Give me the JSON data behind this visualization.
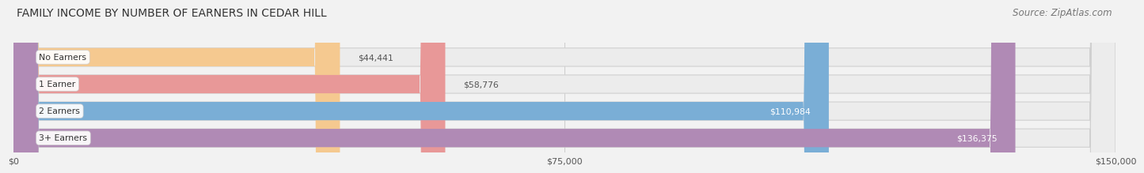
{
  "title": "FAMILY INCOME BY NUMBER OF EARNERS IN CEDAR HILL",
  "source": "Source: ZipAtlas.com",
  "categories": [
    "No Earners",
    "1 Earner",
    "2 Earners",
    "3+ Earners"
  ],
  "values": [
    44441,
    58776,
    110984,
    136375
  ],
  "bar_colors": [
    "#f5c990",
    "#e89898",
    "#7aaed6",
    "#b08ab5"
  ],
  "value_labels": [
    "$44,441",
    "$58,776",
    "$110,984",
    "$136,375"
  ],
  "label_inside": [
    false,
    false,
    true,
    true
  ],
  "xlim": [
    0,
    150000
  ],
  "xticks": [
    0,
    75000,
    150000
  ],
  "xtick_labels": [
    "$0",
    "$75,000",
    "$150,000"
  ],
  "title_fontsize": 10,
  "source_fontsize": 8.5,
  "bar_height": 0.68,
  "bar_gap": 1.0,
  "background_color": "#f2f2f2"
}
